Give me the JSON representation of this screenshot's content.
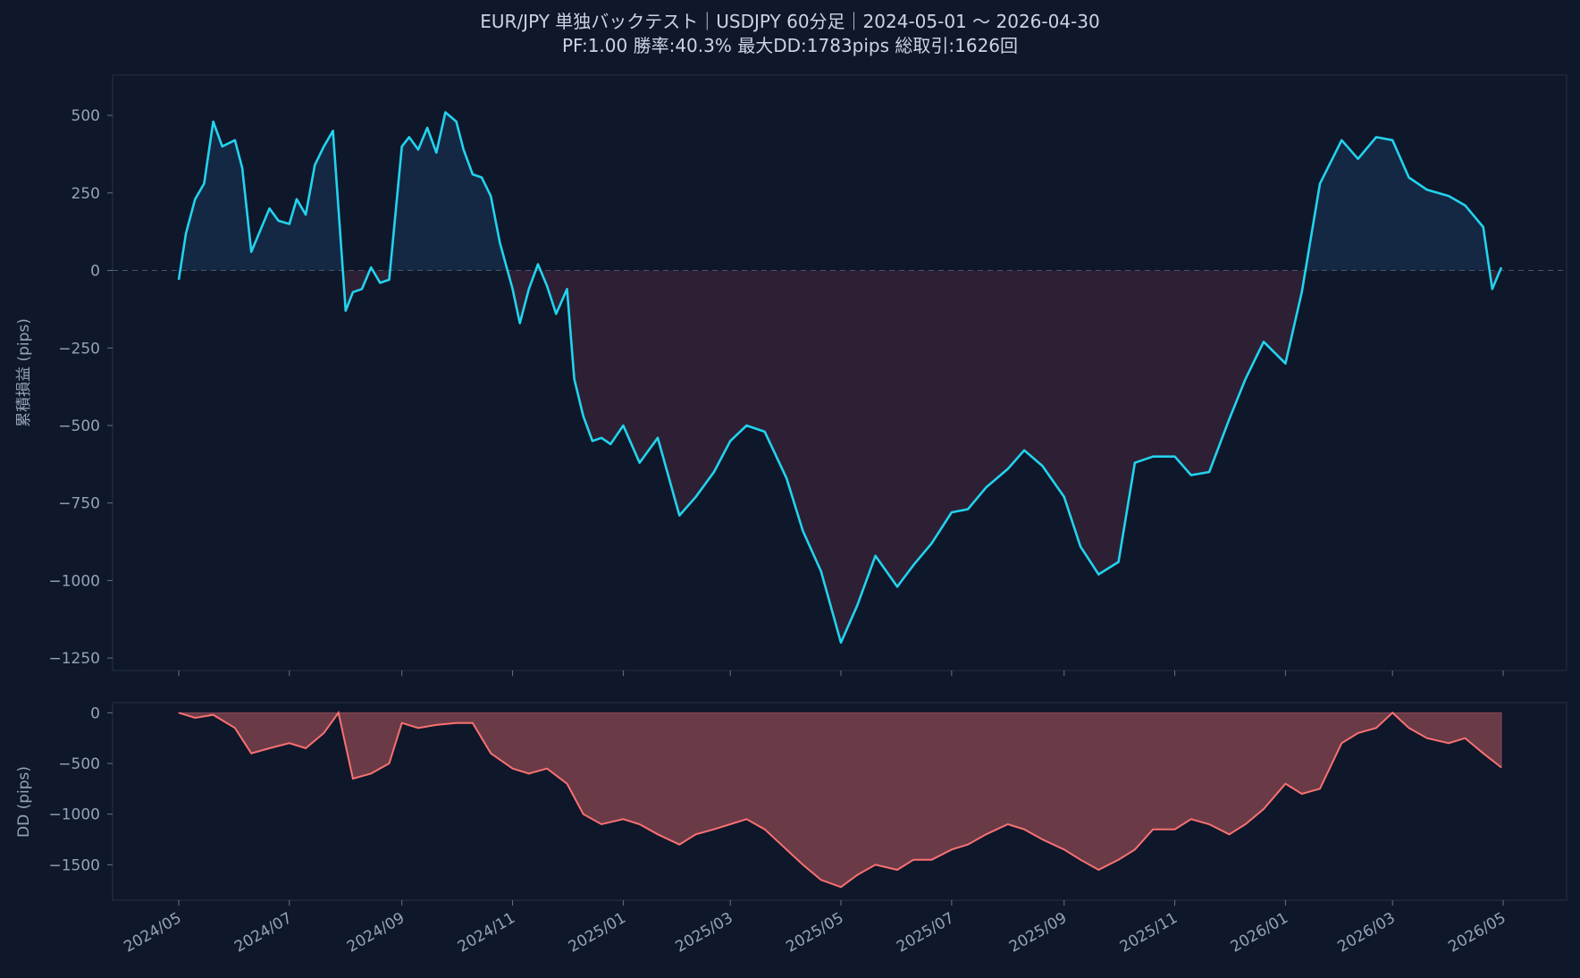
{
  "chart_data": [
    {
      "type": "line",
      "title": "EUR/JPY 単独バックテスト｜USDJPY 60分足｜2024-05-01 〜 2026-04-30",
      "subtitle": "PF:1.00  勝率:40.3%  最大DD:1783pips  総取引:1626回",
      "ylabel": "累積損益 (pips)",
      "xlabel": "",
      "ylim": [
        -1290,
        630
      ],
      "y_ticks": [
        500,
        250,
        0,
        -250,
        -500,
        -750,
        -1000,
        -1250
      ],
      "y_tick_labels": [
        "500",
        "250",
        "0",
        "−250",
        "−500",
        "−750",
        "−1000",
        "−1250"
      ],
      "baseline": 0,
      "fill": "positive/negative area vs 0",
      "series": [
        {
          "color": "#22d3ee",
          "x": [
            "2024-05-01",
            "2024-05-05",
            "2024-05-10",
            "2024-05-15",
            "2024-05-20",
            "2024-05-25",
            "2024-06-01",
            "2024-06-05",
            "2024-06-10",
            "2024-06-15",
            "2024-06-20",
            "2024-06-25",
            "2024-07-01",
            "2024-07-05",
            "2024-07-10",
            "2024-07-15",
            "2024-07-20",
            "2024-07-25",
            "2024-08-01",
            "2024-08-05",
            "2024-08-10",
            "2024-08-15",
            "2024-08-20",
            "2024-08-25",
            "2024-09-01",
            "2024-09-05",
            "2024-09-10",
            "2024-09-15",
            "2024-09-20",
            "2024-09-25",
            "2024-10-01",
            "2024-10-05",
            "2024-10-10",
            "2024-10-15",
            "2024-10-20",
            "2024-10-25",
            "2024-11-01",
            "2024-11-05",
            "2024-11-10",
            "2024-11-15",
            "2024-11-20",
            "2024-11-25",
            "2024-12-01",
            "2024-12-05",
            "2024-12-10",
            "2024-12-15",
            "2024-12-20",
            "2024-12-25",
            "2025-01-01",
            "2025-01-10",
            "2025-01-20",
            "2025-02-01",
            "2025-02-10",
            "2025-02-20",
            "2025-03-01",
            "2025-03-10",
            "2025-03-20",
            "2025-04-01",
            "2025-04-10",
            "2025-04-20",
            "2025-05-01",
            "2025-05-10",
            "2025-05-20",
            "2025-06-01",
            "2025-06-10",
            "2025-06-20",
            "2025-07-01",
            "2025-07-10",
            "2025-07-20",
            "2025-08-01",
            "2025-08-10",
            "2025-08-20",
            "2025-09-01",
            "2025-09-10",
            "2025-09-20",
            "2025-10-01",
            "2025-10-10",
            "2025-10-20",
            "2025-11-01",
            "2025-11-10",
            "2025-11-20",
            "2025-12-01",
            "2025-12-10",
            "2025-12-20",
            "2026-01-01",
            "2026-01-10",
            "2026-01-20",
            "2026-02-01",
            "2026-02-10",
            "2026-02-20",
            "2026-03-01",
            "2026-03-10",
            "2026-03-20",
            "2026-04-01",
            "2026-04-10",
            "2026-04-20",
            "2026-04-25",
            "2026-04-30"
          ],
          "values": [
            -30,
            120,
            230,
            280,
            480,
            400,
            420,
            330,
            60,
            130,
            200,
            160,
            150,
            230,
            180,
            340,
            400,
            450,
            -130,
            -70,
            -60,
            10,
            -40,
            -30,
            400,
            430,
            390,
            460,
            380,
            510,
            480,
            390,
            310,
            300,
            240,
            90,
            -60,
            -170,
            -60,
            20,
            -50,
            -140,
            -60,
            -350,
            -470,
            -550,
            -540,
            -560,
            -500,
            -620,
            -540,
            -790,
            -730,
            -650,
            -550,
            -500,
            -520,
            -670,
            -840,
            -970,
            -1200,
            -1080,
            -920,
            -1020,
            -950,
            -880,
            -780,
            -770,
            -700,
            -640,
            -580,
            -630,
            -730,
            -890,
            -980,
            -940,
            -620,
            -600,
            -600,
            -660,
            -650,
            -480,
            -350,
            -230,
            -300,
            -70,
            280,
            420,
            360,
            430,
            420,
            300,
            260,
            240,
            210,
            140,
            -60,
            10
          ]
        }
      ]
    },
    {
      "type": "area",
      "ylabel": "DD (pips)",
      "xlabel": "",
      "ylim": [
        -1850,
        100
      ],
      "y_ticks": [
        0,
        -500,
        -1000,
        -1500
      ],
      "y_tick_labels": [
        "0",
        "−500",
        "−1000",
        "−1500"
      ],
      "x_tick_labels": [
        "2024/05",
        "2024/07",
        "2024/09",
        "2024/11",
        "2025/01",
        "2025/03",
        "2025/05",
        "2025/07",
        "2025/09",
        "2025/11",
        "2026/01",
        "2026/03",
        "2026/05"
      ],
      "x_ticks": [
        "2024-05-01",
        "2024-07-01",
        "2024-09-01",
        "2024-11-01",
        "2025-01-01",
        "2025-03-01",
        "2025-05-01",
        "2025-07-01",
        "2025-09-01",
        "2025-11-01",
        "2026-01-01",
        "2026-03-01",
        "2026-05-01"
      ],
      "series": [
        {
          "color": "#f87171",
          "fill": "#6b3a47",
          "x": [
            "2024-05-01",
            "2024-05-10",
            "2024-05-20",
            "2024-06-01",
            "2024-06-10",
            "2024-06-20",
            "2024-07-01",
            "2024-07-10",
            "2024-07-20",
            "2024-07-28",
            "2024-08-05",
            "2024-08-15",
            "2024-08-25",
            "2024-09-01",
            "2024-09-10",
            "2024-09-20",
            "2024-10-01",
            "2024-10-10",
            "2024-10-20",
            "2024-11-01",
            "2024-11-10",
            "2024-11-20",
            "2024-12-01",
            "2024-12-10",
            "2024-12-20",
            "2025-01-01",
            "2025-01-10",
            "2025-01-20",
            "2025-02-01",
            "2025-02-10",
            "2025-02-20",
            "2025-03-01",
            "2025-03-10",
            "2025-03-20",
            "2025-04-01",
            "2025-04-10",
            "2025-04-20",
            "2025-05-01",
            "2025-05-10",
            "2025-05-20",
            "2025-06-01",
            "2025-06-10",
            "2025-06-20",
            "2025-07-01",
            "2025-07-10",
            "2025-07-20",
            "2025-08-01",
            "2025-08-10",
            "2025-08-20",
            "2025-09-01",
            "2025-09-10",
            "2025-09-20",
            "2025-10-01",
            "2025-10-10",
            "2025-10-20",
            "2025-11-01",
            "2025-11-10",
            "2025-11-20",
            "2025-12-01",
            "2025-12-10",
            "2025-12-20",
            "2026-01-01",
            "2026-01-10",
            "2026-01-20",
            "2026-02-01",
            "2026-02-10",
            "2026-02-20",
            "2026-03-01",
            "2026-03-10",
            "2026-03-20",
            "2026-04-01",
            "2026-04-10",
            "2026-04-20",
            "2026-04-30"
          ],
          "values": [
            0,
            -50,
            -20,
            -150,
            -400,
            -350,
            -300,
            -350,
            -200,
            0,
            -650,
            -600,
            -500,
            -100,
            -150,
            -120,
            -100,
            -100,
            -400,
            -550,
            -600,
            -550,
            -700,
            -1000,
            -1100,
            -1050,
            -1100,
            -1200,
            -1300,
            -1200,
            -1150,
            -1100,
            -1050,
            -1150,
            -1350,
            -1500,
            -1650,
            -1720,
            -1600,
            -1500,
            -1550,
            -1450,
            -1450,
            -1350,
            -1300,
            -1200,
            -1100,
            -1150,
            -1250,
            -1350,
            -1450,
            -1550,
            -1450,
            -1350,
            -1150,
            -1150,
            -1050,
            -1100,
            -1200,
            -1100,
            -950,
            -700,
            -800,
            -750,
            -300,
            -200,
            -150,
            0,
            -150,
            -250,
            -300,
            -250,
            -400,
            -540
          ]
        }
      ]
    }
  ]
}
